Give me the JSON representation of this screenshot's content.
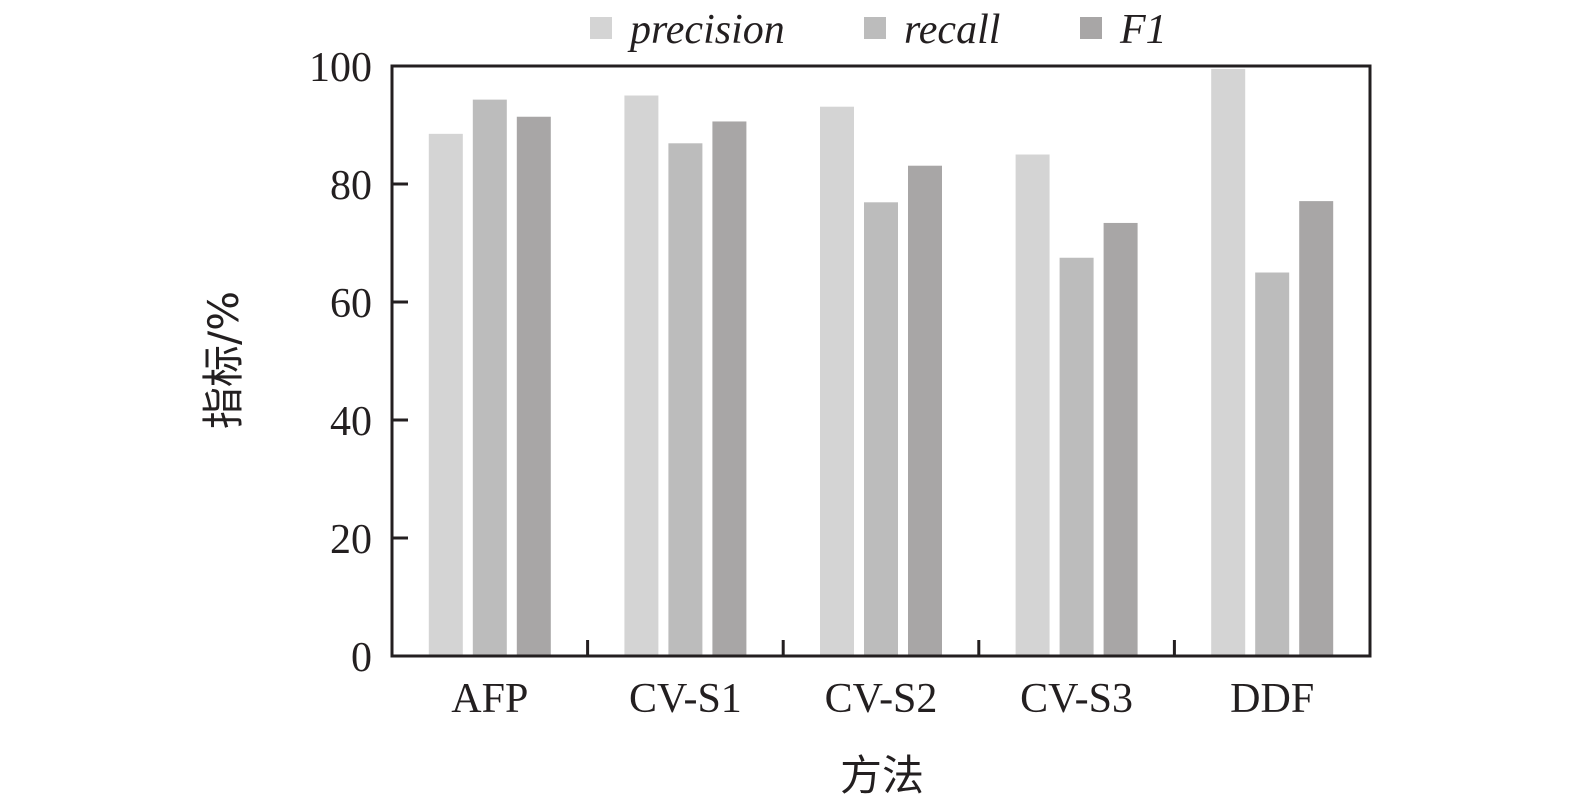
{
  "chart_data": {
    "type": "bar",
    "title": "",
    "xlabel": "方法",
    "ylabel": "指标/%",
    "ylim": [
      0,
      100
    ],
    "yticks": [
      "0",
      "20",
      "40",
      "60",
      "80",
      "100"
    ],
    "categories": [
      "AFP",
      "CV-S1",
      "CV-S2",
      "CV-S3",
      "DDF"
    ],
    "legend_position": "top-center",
    "grid": false,
    "series": [
      {
        "name": "precision",
        "color": "#d4d4d4",
        "values": [
          88.5,
          95.0,
          93.1,
          85.0,
          99.5
        ]
      },
      {
        "name": "recall",
        "color": "#bcbcbc",
        "values": [
          94.3,
          86.9,
          76.9,
          67.5,
          65.0
        ]
      },
      {
        "name": "F1",
        "color": "#a8a6a6",
        "values": [
          91.4,
          90.6,
          83.1,
          73.4,
          77.1
        ]
      }
    ]
  }
}
